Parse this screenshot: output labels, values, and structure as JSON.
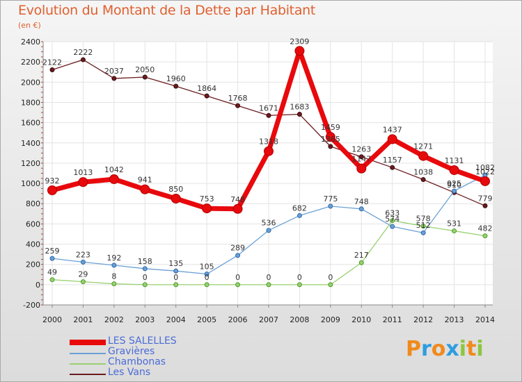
{
  "title": "Evolution du Montant de la Dette par Habitant",
  "subtitle": "(en €)",
  "brand": "Proxiti",
  "chart_data": {
    "type": "line",
    "title": "Evolution du Montant de la Dette par Habitant",
    "ylabel": "(en €)",
    "xlabel": "",
    "ylim": [
      -200,
      2400
    ],
    "yticks": [
      -200,
      0,
      200,
      400,
      600,
      800,
      1000,
      1200,
      1400,
      1600,
      1800,
      2000,
      2200,
      2400
    ],
    "grid": true,
    "legend": "bottom-left",
    "x": [
      "2000",
      "2001",
      "2002",
      "2003",
      "2004",
      "2005",
      "2006",
      "2007",
      "2008",
      "2009",
      "2010",
      "2011",
      "2012",
      "2013",
      "2014"
    ],
    "series": [
      {
        "name": "LES SALELLES",
        "color": "#e8090d",
        "values": [
          932,
          1013,
          1042,
          941,
          850,
          753,
          748,
          1318,
          2309,
          1459,
          1147,
          1437,
          1271,
          1131,
          1022
        ]
      },
      {
        "name": "Gravières",
        "color": "#6aa0d6",
        "values": [
          259,
          223,
          192,
          158,
          135,
          105,
          289,
          536,
          682,
          775,
          748,
          574,
          512,
          925,
          1082
        ]
      },
      {
        "name": "Chambonas",
        "color": "#98d070",
        "values": [
          49,
          29,
          8,
          0,
          0,
          0,
          0,
          0,
          0,
          0,
          217,
          633,
          578,
          531,
          482
        ]
      },
      {
        "name": "Les Vans",
        "color": "#6b1b1f",
        "values": [
          2122,
          2222,
          2037,
          2050,
          1960,
          1864,
          1768,
          1671,
          1683,
          1365,
          1263,
          1157,
          1038,
          910,
          779
        ]
      }
    ]
  }
}
